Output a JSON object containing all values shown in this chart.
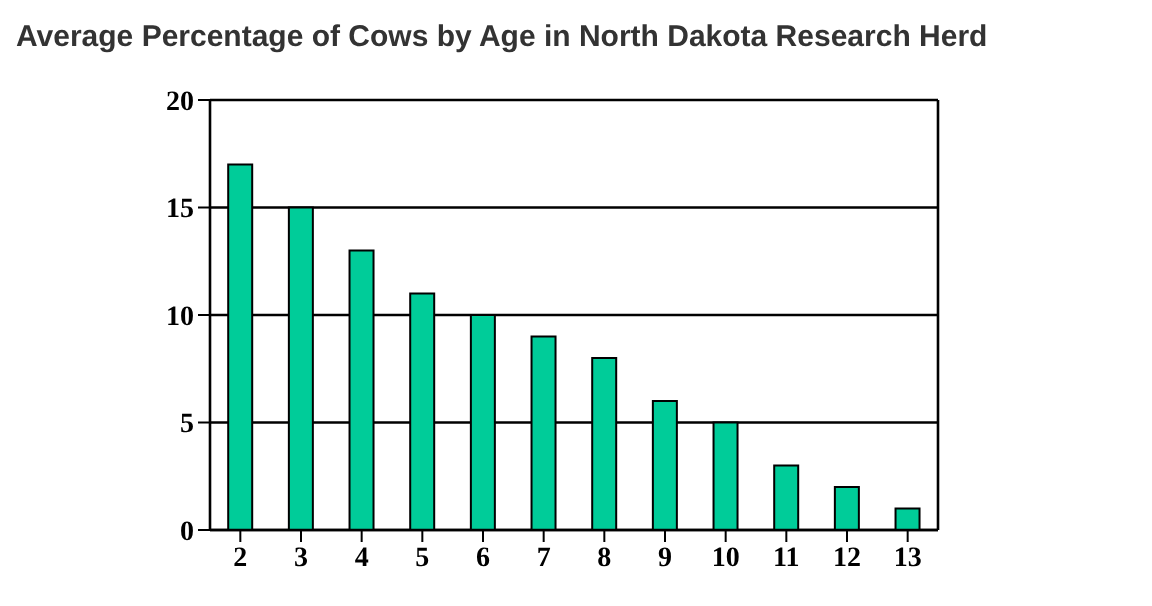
{
  "chart_data": {
    "type": "bar",
    "title": "Average Percentage of Cows by Age in North Dakota Research Herd",
    "categories": [
      "2",
      "3",
      "4",
      "5",
      "6",
      "7",
      "8",
      "9",
      "10",
      "11",
      "12",
      "13"
    ],
    "values": [
      17,
      15,
      13,
      11,
      10,
      9,
      8,
      6,
      5,
      3,
      2,
      1
    ],
    "color": "#00cc99",
    "ylim": [
      0,
      20
    ],
    "yticks": [
      0,
      5,
      10,
      15,
      20
    ],
    "grid": "y"
  }
}
